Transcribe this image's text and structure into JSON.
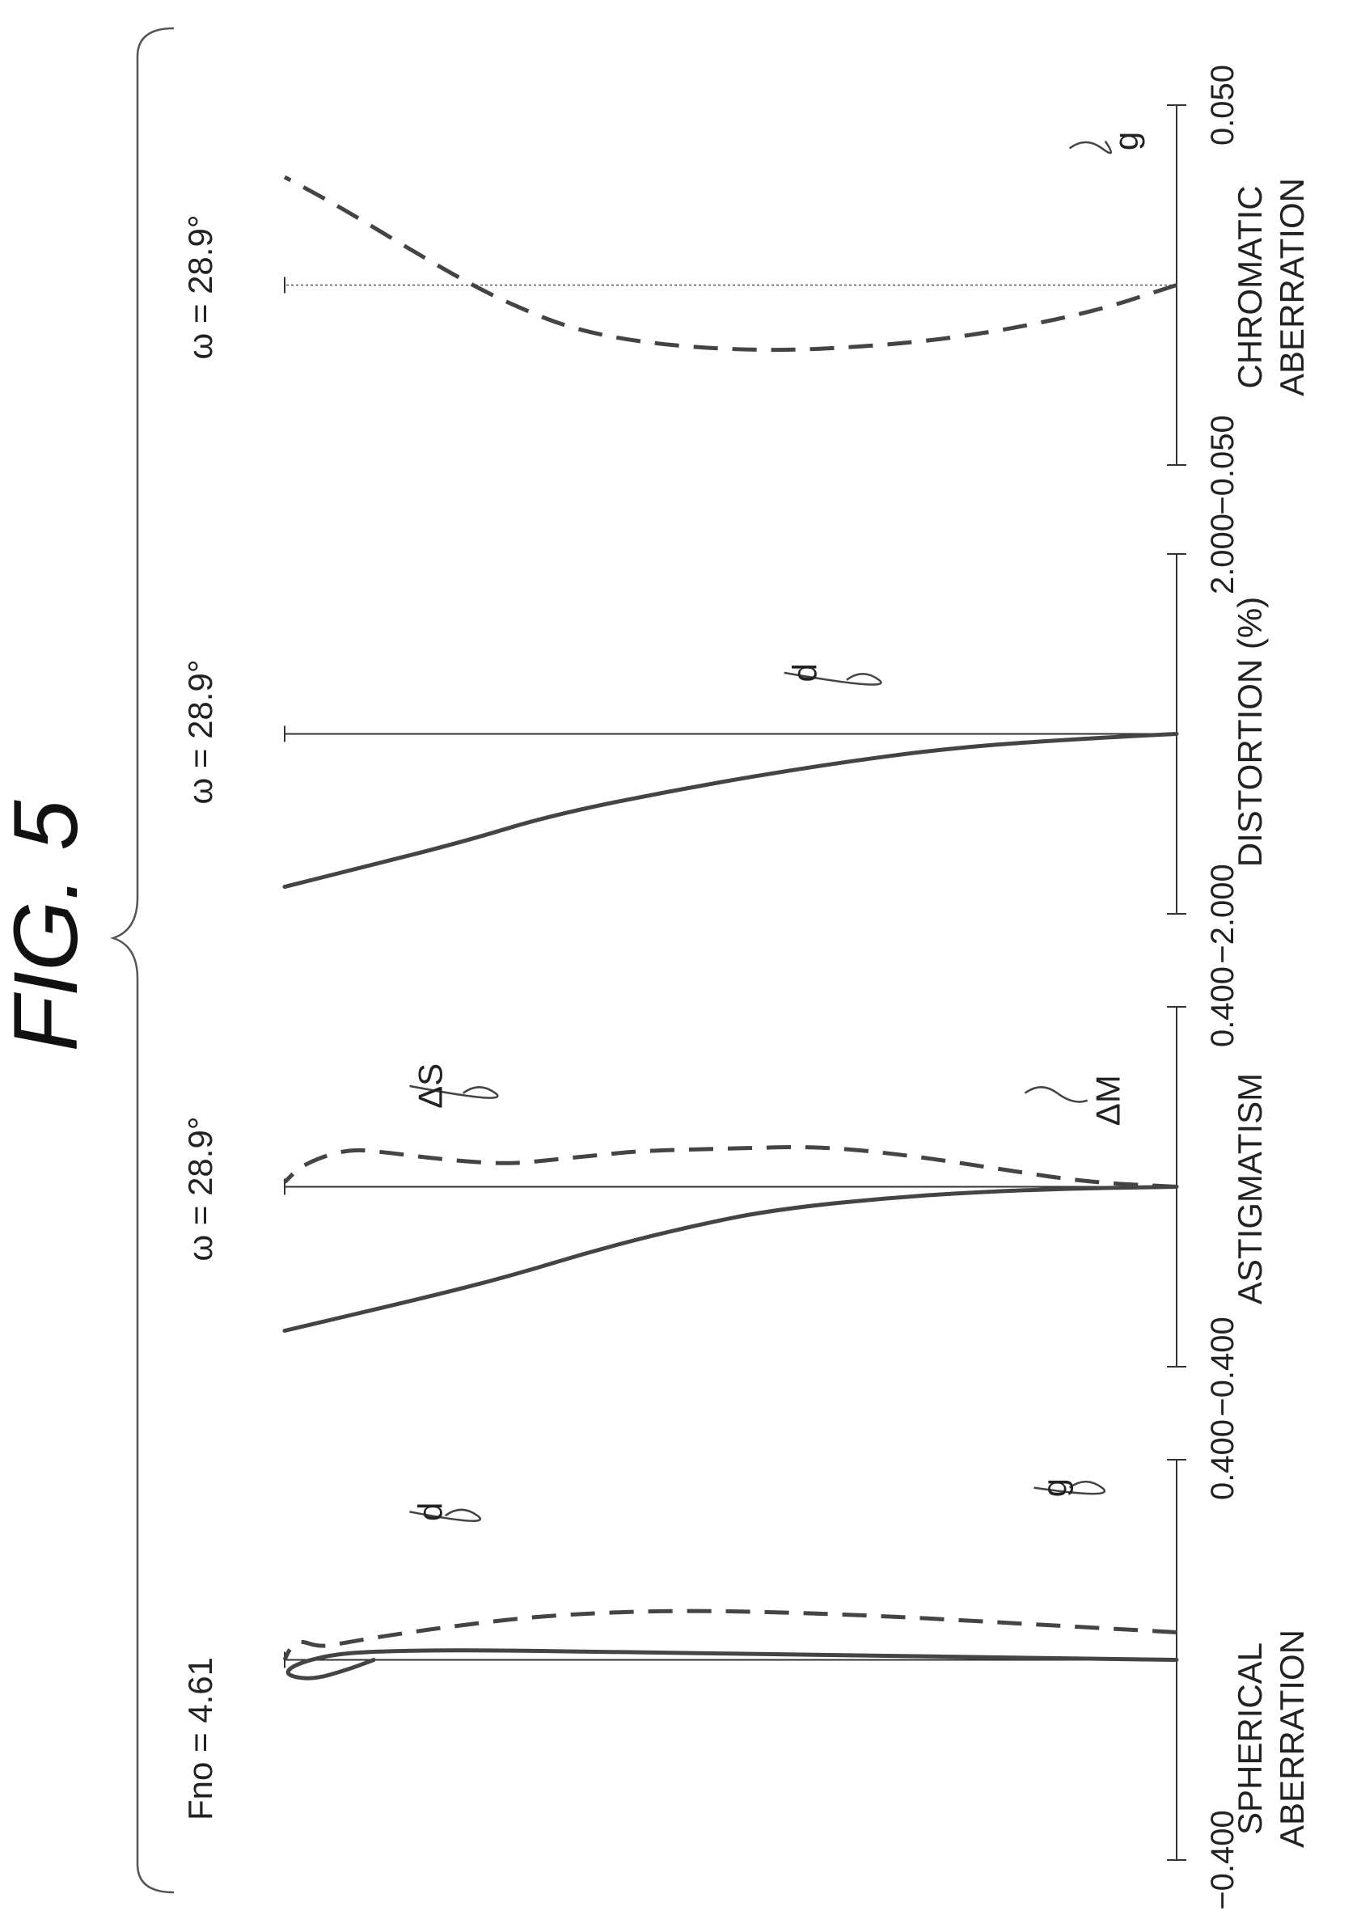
{
  "figure_title": "FIG. 5",
  "chart_data": [
    {
      "type": "line",
      "title": "Fno = 4.61",
      "xlabel": "SPHERICAL ABERRATION",
      "xlim": [
        -0.4,
        0.4
      ],
      "ylim": [
        0,
        1
      ],
      "ticks": [
        "−0.400",
        "0.400"
      ],
      "series": [
        {
          "name": "d",
          "style": "solid",
          "x": [
            0.0,
            0.005,
            0.01,
            0.015,
            0.02,
            0.017,
            0.01,
            -0.01,
            -0.03,
            -0.04,
            -0.02,
            0.0
          ],
          "y": [
            0.0,
            0.2,
            0.4,
            0.6,
            0.8,
            0.9,
            0.95,
            0.99,
            1.0,
            0.97,
            0.93,
            0.9
          ]
        },
        {
          "name": "g",
          "style": "dashed",
          "x": [
            0.055,
            0.07,
            0.09,
            0.1,
            0.09,
            0.07,
            0.05,
            0.035,
            0.025,
            0.04,
            0.02,
            0.0
          ],
          "y": [
            0.0,
            0.15,
            0.35,
            0.55,
            0.7,
            0.8,
            0.88,
            0.93,
            0.96,
            0.985,
            0.995,
            1.0
          ]
        }
      ]
    },
    {
      "type": "line",
      "title": "ω = 28.9°",
      "xlabel": "ASTIGMATISM",
      "xlim": [
        -0.4,
        0.4
      ],
      "ylim": [
        0,
        1
      ],
      "ticks": [
        "−0.400",
        "0.400"
      ],
      "series": [
        {
          "name": "ΔS",
          "style": "solid",
          "x": [
            0.0,
            -0.005,
            -0.02,
            -0.05,
            -0.09,
            -0.14,
            -0.2,
            -0.25,
            -0.32
          ],
          "y": [
            0.0,
            0.15,
            0.3,
            0.45,
            0.55,
            0.65,
            0.75,
            0.85,
            1.0
          ]
        },
        {
          "name": "ΔM",
          "style": "dashed",
          "x": [
            0.0,
            0.01,
            0.04,
            0.07,
            0.09,
            0.085,
            0.08,
            0.07,
            0.06,
            0.05,
            0.06,
            0.075,
            0.085,
            0.05,
            0.01
          ],
          "y": [
            0.0,
            0.1,
            0.2,
            0.3,
            0.4,
            0.5,
            0.6,
            0.65,
            0.7,
            0.75,
            0.82,
            0.88,
            0.93,
            0.98,
            1.0
          ]
        }
      ]
    },
    {
      "type": "line",
      "title": "ω = 28.9°",
      "xlabel": "DISTORTION (%)",
      "xlim": [
        -2.0,
        2.0
      ],
      "ylim": [
        0,
        1
      ],
      "ticks": [
        "−2.000",
        "2.000"
      ],
      "series": [
        {
          "name": "d",
          "style": "solid",
          "x": [
            0.0,
            -0.05,
            -0.15,
            -0.35,
            -0.6,
            -0.9,
            -1.2,
            -1.5,
            -1.7
          ],
          "y": [
            0.0,
            0.1,
            0.25,
            0.4,
            0.55,
            0.7,
            0.8,
            0.92,
            1.0
          ]
        }
      ]
    },
    {
      "type": "line",
      "title": "ω = 28.9°",
      "xlabel": "CHROMATIC ABERRATION",
      "xlim": [
        -0.05,
        0.05
      ],
      "ylim": [
        0,
        1
      ],
      "ticks": [
        "−0.050",
        "0.050"
      ],
      "series": [
        {
          "name": "g",
          "style": "dashed",
          "x": [
            0.0,
            -0.008,
            -0.015,
            -0.018,
            -0.018,
            -0.016,
            -0.012,
            -0.006,
            0.0,
            0.01,
            0.022,
            0.03
          ],
          "y": [
            0.0,
            0.1,
            0.25,
            0.4,
            0.5,
            0.6,
            0.68,
            0.74,
            0.79,
            0.86,
            0.94,
            1.0
          ]
        }
      ]
    }
  ]
}
